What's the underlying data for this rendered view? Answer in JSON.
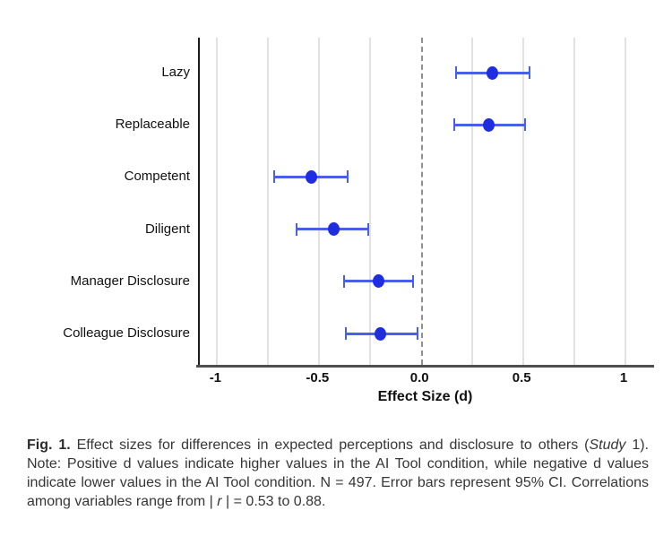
{
  "chart_data": {
    "type": "scatter",
    "subtype": "forest-plot-dot-with-95ci-error-bars",
    "categories": [
      "Lazy",
      "Replaceable",
      "Competent",
      "Diligent",
      "Manager Disclosure",
      "Colleague Disclosure"
    ],
    "values": [
      0.35,
      0.33,
      -0.54,
      -0.43,
      -0.21,
      -0.2
    ],
    "ci_low": [
      0.17,
      0.16,
      -0.72,
      -0.61,
      -0.38,
      -0.37
    ],
    "ci_high": [
      0.53,
      0.51,
      -0.36,
      -0.26,
      -0.04,
      -0.02
    ],
    "xlabel": "Effect Size (d)",
    "ylabel": "",
    "title": "",
    "xlim": [
      -1.085,
      1.14
    ],
    "x_ticks": [
      -1,
      -0.5,
      0,
      0.5,
      1
    ],
    "x_tick_labels": [
      "-1",
      "-0.5",
      "0.0",
      "0.5",
      "1"
    ],
    "gridline_step": 0.25,
    "zero_reference_line": 0,
    "grid": true,
    "legend": false,
    "colors": {
      "point": "#1f2de0",
      "error_bar": "#4660e8",
      "gridline": "#e2e2e2",
      "zero_line": "#909090",
      "x_axis": "#4f4f4f",
      "y_axis": "#1c1c1c"
    }
  },
  "caption": {
    "fig_label": "Fig. 1.",
    "text_1": " Effect sizes for differences in expected perceptions and disclosure to others (",
    "study_italic": "Study",
    "text_2": " 1). Note: Positive d values indicate higher values in the AI Tool condition, while negative d values indicate lower values in the AI Tool condition. N = 497. Error bars represent 95% CI. Correlations among variables range from | ",
    "r_italic": "r",
    "text_3": " | = 0.53 to 0.88."
  }
}
